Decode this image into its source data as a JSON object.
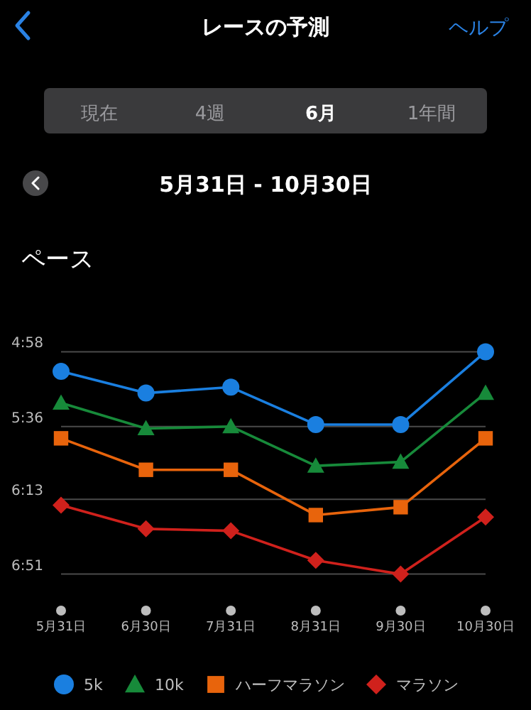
{
  "chart_data": {
    "type": "line",
    "title": "ペース",
    "subtitle": "5月31日 - 10月30日",
    "annotations": [
      "レースの予測",
      "ヘルプ",
      "現在",
      "4週",
      "6月",
      "1年間"
    ],
    "categories": [
      "5月31日",
      "6月30日",
      "7月31日",
      "8月31日",
      "9月30日",
      "10月30日"
    ],
    "series": [
      {
        "name": "5k",
        "color": "#1a7fe0",
        "marker": "circle",
        "values": [
          308,
          319,
          316,
          335,
          335,
          298
        ]
      },
      {
        "name": "10k",
        "color": "#178a3a",
        "marker": "triangle",
        "values": [
          324,
          337,
          336,
          356,
          354,
          319
        ]
      },
      {
        "name": "ハーフマラソン",
        "color": "#e8640c",
        "marker": "square",
        "values": [
          342,
          358,
          358,
          381,
          377,
          342
        ]
      },
      {
        "name": "マラソン",
        "color": "#d0211c",
        "marker": "diamond",
        "values": [
          376,
          388,
          389,
          404,
          411,
          382
        ]
      }
    ],
    "ylim": [
      411,
      298
    ],
    "yticks": [
      {
        "value": 298,
        "label": "4:58"
      },
      {
        "value": 336,
        "label": "5:36"
      },
      {
        "value": 373,
        "label": "6:13"
      },
      {
        "value": 411,
        "label": "6:51"
      }
    ],
    "grid": "y",
    "legend": "bottom",
    "line_style": "solid"
  }
}
